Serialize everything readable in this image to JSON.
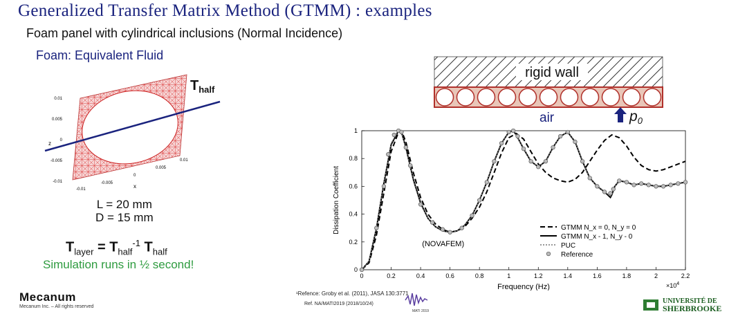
{
  "slide": {
    "title": "Generalized Transfer Matrix Method (GTMM) : examples",
    "subtitle": "Foam panel with cylindrical inclusions (Normal Incidence)",
    "foam_heading": "Foam: Equivalent Fluid",
    "t_half_label": "T",
    "t_half_sub": "half",
    "dim_L": "L = 20 mm",
    "dim_D": "D = 15 mm",
    "formula": {
      "t": "T",
      "layer": "layer",
      "eq": " = T",
      "half": "half",
      "sup": "-1",
      "t2": " T",
      "half2": "half"
    },
    "simulation_note": "Simulation runs in ½ second!",
    "mesh_axes": {
      "z_label": "z",
      "x_label": "x",
      "z_ticks": [
        "0.01",
        "0.005",
        "0",
        "-0.005",
        "-0.01"
      ],
      "x_ticks": [
        "-0.01",
        "-0.005",
        "0",
        "0.005",
        "0.01"
      ]
    }
  },
  "schematic": {
    "wall_label": "rigid wall",
    "air_label": "air",
    "pressure_label": "p",
    "pressure_sub": "0",
    "colors": {
      "layer": "#e9c6b8",
      "border": "#b0302a",
      "air": "#1a237e"
    }
  },
  "chart_data": {
    "type": "line",
    "xlabel": "Frequency (Hz)",
    "ylabel": "Dissipation Coefficient",
    "xscale_note": "×10",
    "xscale_exp": "4",
    "xlim": [
      0,
      2.2
    ],
    "ylim": [
      0,
      1
    ],
    "xticks": [
      "0",
      "0.2",
      "0.4",
      "0.6",
      "0.8",
      "1",
      "1.2",
      "1.4",
      "1.6",
      "1.8",
      "2",
      "2.2"
    ],
    "yticks": [
      "0",
      "0.2",
      "0.4",
      "0.6",
      "0.8",
      "1"
    ],
    "annotation": "(NOVAFEM)",
    "legend_position": "bottom-right",
    "series": [
      {
        "name": "GTMM N_x = 0, N_y = 0",
        "style": "dashed",
        "x": [
          0.0,
          0.05,
          0.1,
          0.15,
          0.2,
          0.25,
          0.27,
          0.3,
          0.35,
          0.4,
          0.45,
          0.5,
          0.55,
          0.6,
          0.65,
          0.7,
          0.75,
          0.8,
          0.85,
          0.9,
          0.95,
          1.0,
          1.05,
          1.1,
          1.15,
          1.2,
          1.25,
          1.3,
          1.35,
          1.4,
          1.45,
          1.5,
          1.55,
          1.6,
          1.65,
          1.7,
          1.75,
          1.8,
          1.85,
          1.9,
          1.95,
          2.0,
          2.05,
          2.1,
          2.15,
          2.2
        ],
        "y": [
          0.0,
          0.05,
          0.25,
          0.55,
          0.85,
          0.99,
          1.0,
          0.92,
          0.7,
          0.52,
          0.4,
          0.33,
          0.29,
          0.27,
          0.28,
          0.31,
          0.37,
          0.45,
          0.56,
          0.7,
          0.84,
          0.95,
          0.98,
          0.94,
          0.85,
          0.76,
          0.7,
          0.66,
          0.64,
          0.63,
          0.65,
          0.7,
          0.78,
          0.86,
          0.93,
          0.97,
          0.95,
          0.89,
          0.81,
          0.75,
          0.72,
          0.71,
          0.72,
          0.74,
          0.76,
          0.78
        ]
      },
      {
        "name": "GTMM N_x - 1, N_y - 0",
        "style": "solid",
        "x": [
          0.0,
          0.05,
          0.1,
          0.15,
          0.2,
          0.25,
          0.27,
          0.3,
          0.35,
          0.4,
          0.45,
          0.5,
          0.55,
          0.6,
          0.65,
          0.7,
          0.75,
          0.8,
          0.85,
          0.9,
          0.95,
          1.0,
          1.03,
          1.05,
          1.1,
          1.15,
          1.2,
          1.25,
          1.3,
          1.35,
          1.4,
          1.45,
          1.5,
          1.55,
          1.6,
          1.65,
          1.69,
          1.7,
          1.72,
          1.75,
          1.8,
          1.85,
          1.9,
          1.95,
          2.0,
          2.05,
          2.1,
          2.15,
          2.2
        ],
        "y": [
          0.0,
          0.06,
          0.3,
          0.62,
          0.9,
          1.0,
          0.99,
          0.88,
          0.65,
          0.48,
          0.37,
          0.31,
          0.28,
          0.27,
          0.28,
          0.32,
          0.39,
          0.5,
          0.63,
          0.78,
          0.91,
          0.99,
          1.0,
          0.97,
          0.87,
          0.78,
          0.74,
          0.78,
          0.88,
          0.96,
          0.99,
          0.92,
          0.78,
          0.66,
          0.6,
          0.56,
          0.52,
          0.54,
          0.6,
          0.64,
          0.63,
          0.61,
          0.62,
          0.61,
          0.6,
          0.6,
          0.61,
          0.62,
          0.63
        ]
      },
      {
        "name": "PUC",
        "style": "dotted",
        "x": [
          0.0,
          0.05,
          0.1,
          0.15,
          0.2,
          0.25,
          0.27,
          0.3,
          0.35,
          0.4,
          0.45,
          0.5,
          0.55,
          0.6,
          0.65,
          0.7,
          0.75,
          0.8,
          0.85,
          0.9,
          0.95,
          1.0,
          1.03,
          1.05,
          1.1,
          1.15,
          1.2,
          1.25,
          1.3,
          1.35,
          1.4,
          1.45,
          1.5,
          1.55,
          1.6,
          1.65,
          1.69,
          1.7,
          1.72,
          1.75,
          1.8,
          1.85,
          1.9,
          1.95,
          2.0,
          2.05,
          2.1,
          2.15,
          2.2
        ],
        "y": [
          0.0,
          0.06,
          0.31,
          0.63,
          0.91,
          1.0,
          0.99,
          0.87,
          0.64,
          0.47,
          0.37,
          0.31,
          0.28,
          0.27,
          0.28,
          0.32,
          0.39,
          0.5,
          0.63,
          0.78,
          0.91,
          0.99,
          1.0,
          0.97,
          0.87,
          0.78,
          0.74,
          0.78,
          0.88,
          0.96,
          0.99,
          0.92,
          0.78,
          0.66,
          0.6,
          0.56,
          0.53,
          0.55,
          0.6,
          0.64,
          0.63,
          0.61,
          0.62,
          0.61,
          0.6,
          0.6,
          0.61,
          0.62,
          0.63
        ]
      },
      {
        "name": "Reference",
        "style": "markers",
        "x": [
          0.0,
          0.1,
          0.15,
          0.18,
          0.22,
          0.25,
          0.27,
          0.3,
          0.33,
          0.4,
          0.48,
          0.55,
          0.6,
          0.68,
          0.75,
          0.8,
          0.85,
          0.9,
          0.95,
          1.0,
          1.03,
          1.06,
          1.1,
          1.15,
          1.2,
          1.25,
          1.3,
          1.35,
          1.4,
          1.45,
          1.5,
          1.55,
          1.6,
          1.65,
          1.69,
          1.71,
          1.75,
          1.8,
          1.85,
          1.9,
          1.95,
          2.0,
          2.05,
          2.1,
          2.15,
          2.2
        ],
        "y": [
          0.0,
          0.3,
          0.6,
          0.83,
          0.97,
          1.0,
          0.99,
          0.88,
          0.75,
          0.47,
          0.34,
          0.29,
          0.27,
          0.3,
          0.39,
          0.5,
          0.63,
          0.78,
          0.91,
          0.99,
          1.0,
          0.96,
          0.87,
          0.78,
          0.74,
          0.78,
          0.88,
          0.96,
          0.99,
          0.92,
          0.78,
          0.66,
          0.6,
          0.56,
          0.55,
          0.58,
          0.64,
          0.63,
          0.61,
          0.62,
          0.61,
          0.6,
          0.6,
          0.61,
          0.62,
          0.63
        ]
      }
    ]
  },
  "footer": {
    "logo": "Mecanum",
    "rights": "Mecanum Inc. – All rights reserved",
    "ref1": "¹Refence: Groby et al. (2011), JASA 130:3771",
    "ref2": "Ref. NA/MATI2019  (2018/10/24)",
    "mati_label": "MATI 2019",
    "university_line1": "UNIVERSITÉ DE",
    "university_line2": "SHERBROOKE"
  }
}
